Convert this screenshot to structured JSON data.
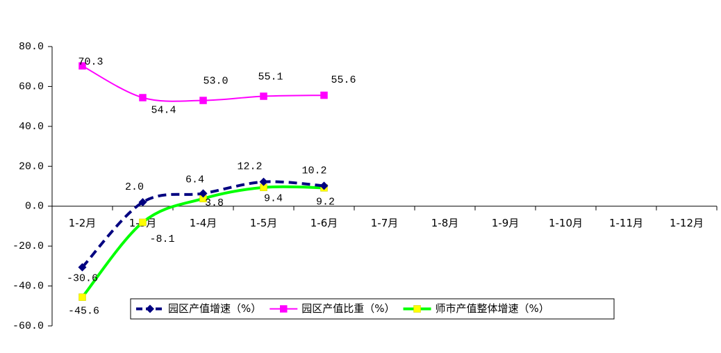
{
  "chart_data": {
    "type": "line",
    "categories": [
      "1-2月",
      "1-3月",
      "1-4月",
      "1-5月",
      "1-6月",
      "1-7月",
      "1-8月",
      "1-9月",
      "1-10月",
      "1-11月",
      "1-12月"
    ],
    "series": [
      {
        "name": "园区产值增速（%）",
        "color": "#000080",
        "marker": "diamond",
        "dash": true,
        "values": [
          -30.6,
          2.0,
          6.4,
          12.2,
          10.2,
          null,
          null,
          null,
          null,
          null,
          null
        ],
        "value_labels": [
          "-30.6",
          "2.0",
          "6.4",
          "12.2",
          "10.2",
          null,
          null,
          null,
          null,
          null,
          null
        ]
      },
      {
        "name": "园区产值比重（%）",
        "color": "#ff00ff",
        "marker": "square",
        "marker_color": "#ff00ff",
        "values": [
          70.3,
          54.4,
          53.0,
          55.1,
          55.6,
          null,
          null,
          null,
          null,
          null,
          null
        ],
        "value_labels": [
          "70.3",
          "54.4",
          "53.0",
          "55.1",
          "55.6",
          null,
          null,
          null,
          null,
          null,
          null
        ]
      },
      {
        "name": "师市产值整体增速（%）",
        "color": "#00ff00",
        "marker": "square",
        "marker_color": "#ffff00",
        "values": [
          -45.6,
          -8.1,
          3.8,
          9.4,
          9.2,
          null,
          null,
          null,
          null,
          null,
          null
        ],
        "value_labels": [
          "-45.6",
          "-8.1",
          "3.8",
          "9.4",
          "9.2",
          null,
          null,
          null,
          null,
          null,
          null
        ]
      }
    ],
    "ylim": [
      -60,
      80
    ],
    "yticks": [
      {
        "value": -60,
        "label": "-60.0"
      },
      {
        "value": -40,
        "label": "-40.0"
      },
      {
        "value": -20,
        "label": "-20.0"
      },
      {
        "value": 0,
        "label": "0.0"
      },
      {
        "value": 20,
        "label": "20.0"
      },
      {
        "value": 40,
        "label": "40.0"
      },
      {
        "value": 60,
        "label": "60.0"
      },
      {
        "value": 80,
        "label": "80.0"
      }
    ],
    "grid": false,
    "legend": "bottom"
  }
}
